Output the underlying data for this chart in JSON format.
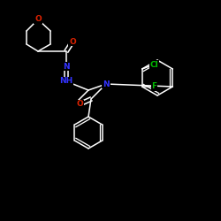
{
  "background": "#000000",
  "bond_color": "#ffffff",
  "atom_colors": {
    "O": "#dd2200",
    "N": "#3333ff",
    "Cl": "#00bb00",
    "F": "#00bb00",
    "C": "#ffffff"
  },
  "figsize": [
    2.5,
    2.5
  ],
  "dpi": 100
}
